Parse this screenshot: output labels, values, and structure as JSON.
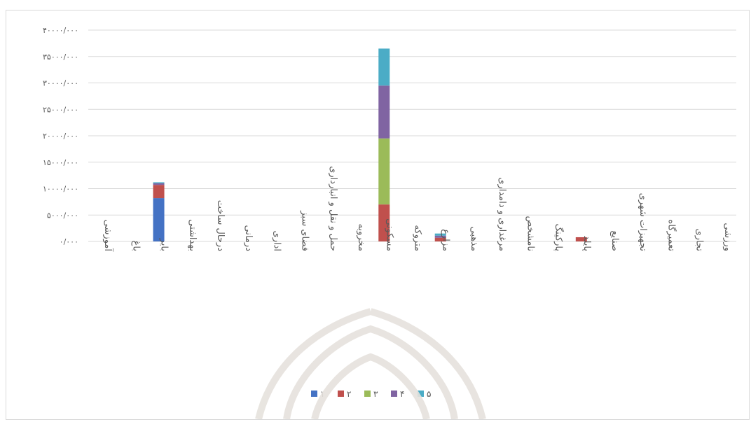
{
  "chart_data": {
    "type": "bar",
    "stacked": true,
    "categories": [
      "آموزشی",
      "باغ",
      "بایر",
      "بهداشتی",
      "درحال ساخت",
      "درمانی",
      "اداری",
      "فضای سبز",
      "حمل و نقل و انبارداری",
      "مخروبه",
      "مسکونی",
      "متروکه",
      "مزارع",
      "مذهبی",
      "مرغداری و دامداری",
      "نامشخص",
      "پارکینگ",
      "پایلد",
      "صنایع",
      "تجهیزات شهری",
      "تعمیرگاه",
      "تجاری",
      "ورزشی"
    ],
    "series": [
      {
        "name": "۱",
        "color": "#4472C4",
        "values": [
          0,
          0,
          8200,
          0,
          0,
          0,
          0,
          0,
          0,
          0,
          0,
          0,
          0,
          0,
          0,
          0,
          0,
          0,
          0,
          0,
          0,
          0,
          0
        ]
      },
      {
        "name": "۲",
        "color": "#C0504D",
        "values": [
          0,
          0,
          2500,
          0,
          0,
          0,
          0,
          0,
          0,
          0,
          7000,
          0,
          700,
          0,
          0,
          0,
          0,
          800,
          0,
          0,
          0,
          0,
          0
        ]
      },
      {
        "name": "۳",
        "color": "#9BBB59",
        "values": [
          0,
          0,
          0,
          0,
          0,
          0,
          0,
          0,
          0,
          0,
          12500,
          0,
          0,
          0,
          0,
          0,
          0,
          0,
          0,
          0,
          0,
          0,
          0
        ]
      },
      {
        "name": "۴",
        "color": "#8064A2",
        "values": [
          0,
          0,
          300,
          0,
          0,
          0,
          0,
          0,
          0,
          0,
          10000,
          0,
          400,
          0,
          0,
          0,
          0,
          0,
          0,
          0,
          0,
          0,
          0
        ]
      },
      {
        "name": "۵",
        "color": "#4BACC6",
        "values": [
          0,
          0,
          200,
          0,
          0,
          0,
          0,
          0,
          0,
          0,
          7000,
          0,
          400,
          0,
          0,
          0,
          0,
          0,
          0,
          0,
          0,
          0,
          0
        ]
      }
    ],
    "y_ticks": [
      "۰/۰۰۰",
      "۵۰۰۰/۰۰۰",
      "۱۰۰۰۰/۰۰۰",
      "۱۵۰۰۰/۰۰۰",
      "۲۰۰۰۰/۰۰۰",
      "۲۵۰۰۰/۰۰۰",
      "۳۰۰۰۰/۰۰۰",
      "۳۵۰۰۰/۰۰۰",
      "۴۰۰۰۰/۰۰۰"
    ],
    "ylim": [
      0,
      40000
    ],
    "grid": true,
    "legend_position": "bottom"
  }
}
